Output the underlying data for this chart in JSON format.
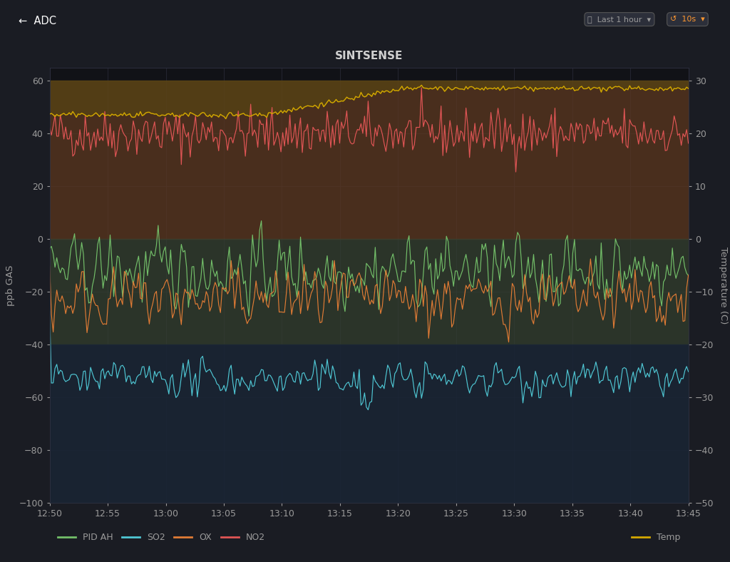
{
  "title": "SINTSENSE",
  "xlabel_ticks": [
    "12:50",
    "12:55",
    "13:00",
    "13:05",
    "13:10",
    "13:15",
    "13:20",
    "13:25",
    "13:30",
    "13:35",
    "13:40",
    "13:45"
  ],
  "ylabel_left": "ppb GAS",
  "ylabel_right": "Temperature (C)",
  "ylim_left": [
    -100,
    65
  ],
  "ylim_right": [
    -50,
    32.5
  ],
  "yticks_left": [
    -100,
    -80,
    -60,
    -40,
    -20,
    0,
    20,
    40,
    60
  ],
  "yticks_right": [
    -50,
    -40,
    -30,
    -20,
    -10,
    0,
    10,
    20,
    30
  ],
  "background_color": "#1a1c23",
  "plot_bg_color": "#111217",
  "grid_color": "#2e3040",
  "title_color": "#d0d0d0",
  "axis_color": "#9a9a9a",
  "colors": {
    "PID_AH": "#73bf69",
    "SO2": "#4fc7d4",
    "OX": "#e07b35",
    "NO2": "#e05555",
    "Temp": "#d4a800"
  },
  "band_upper_color": "#5c3820",
  "band_upper_alpha": 0.75,
  "band_mid_color": "#354030",
  "band_mid_alpha": 0.75,
  "band_lower_color": "#1a2535",
  "band_lower_alpha": 0.9,
  "n_points": 360,
  "seed": 42
}
